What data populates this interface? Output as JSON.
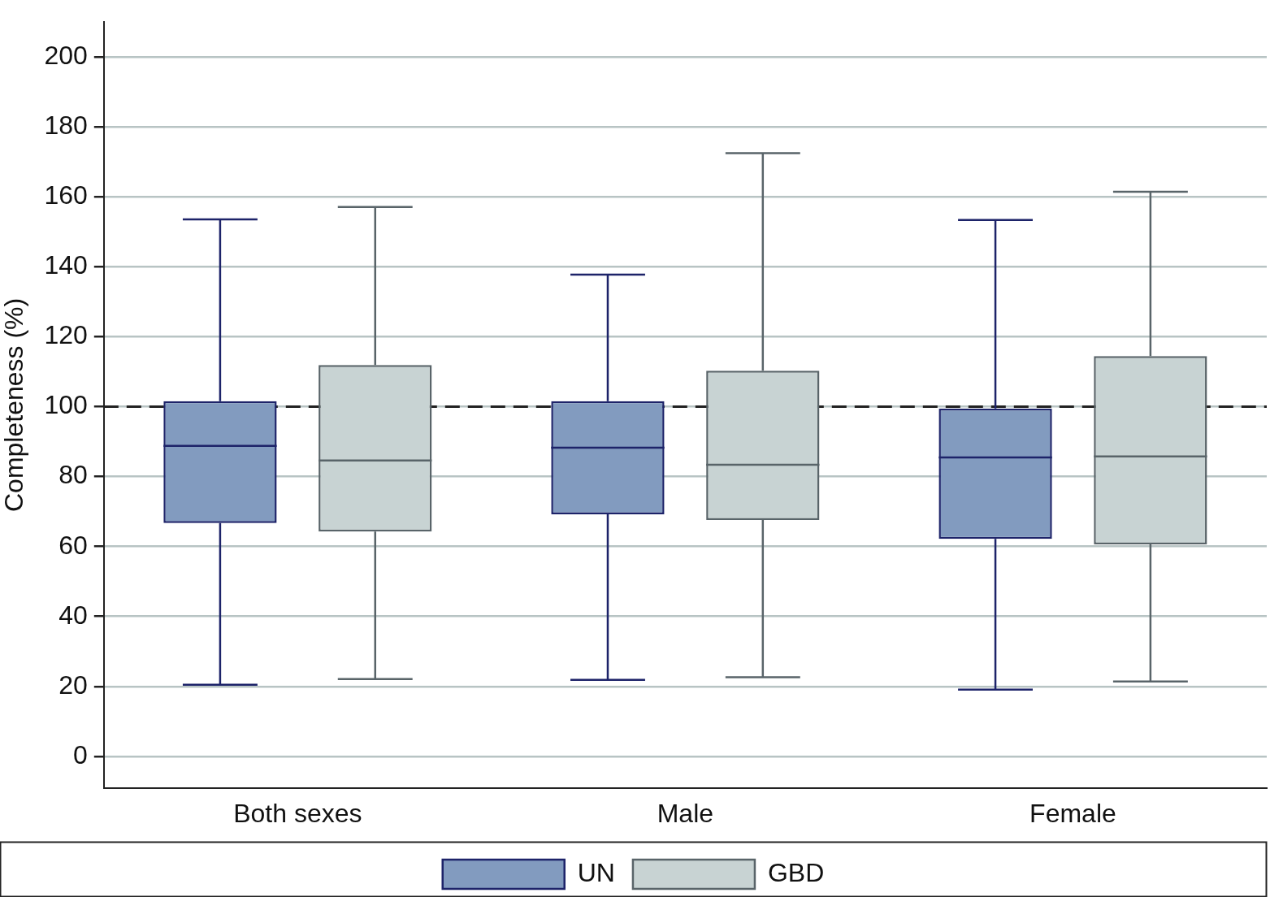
{
  "chart_data": {
    "type": "boxplot",
    "y_label": "Completeness (%)",
    "categories": [
      "Both sexes",
      "Male",
      "Female"
    ],
    "series": [
      {
        "name": "UN",
        "color": "#829bbf",
        "min": [
          20.5,
          21.9,
          19.1
        ],
        "q1": [
          66.7,
          69.2,
          62.2
        ],
        "median": [
          88.8,
          88.3,
          85.5
        ],
        "q3": [
          101.6,
          101.6,
          99.5
        ],
        "max": [
          153.6,
          137.8,
          153.4
        ]
      },
      {
        "name": "GBD",
        "color": "#c8d3d3",
        "min": [
          22.1,
          22.6,
          21.4
        ],
        "q1": [
          64.3,
          67.6,
          60.6
        ],
        "median": [
          84.6,
          83.4,
          85.8
        ],
        "q3": [
          111.9,
          110.3,
          114.5
        ],
        "max": [
          157.1,
          172.5,
          161.5
        ]
      }
    ],
    "reference_line": 100,
    "ylim": [
      -9,
      210
    ],
    "yticks": [
      0,
      20,
      40,
      60,
      80,
      100,
      120,
      140,
      160,
      180,
      200
    ],
    "grid": true,
    "legend": "bottom"
  }
}
